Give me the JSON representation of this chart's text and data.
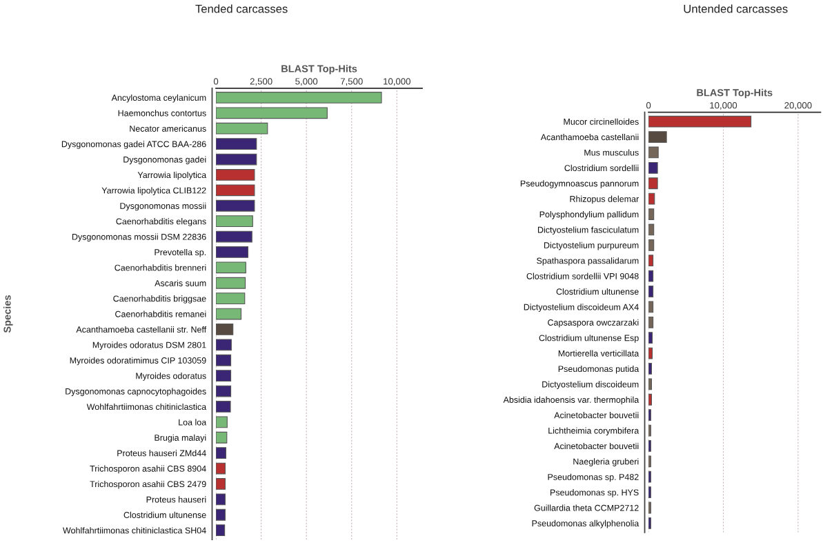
{
  "chart_data": [
    {
      "type": "bar",
      "orientation": "horizontal",
      "title": "Tended carcasses",
      "xlabel": "BLAST Top-Hits",
      "ylabel": "Species",
      "grid": "x",
      "categories": [
        "Ancylostoma ceylanicum",
        "Haemonchus contortus",
        "Necator americanus",
        "Dysgonomonas gadei ATCC BAA-286",
        "Dysgonomonas gadei",
        "Yarrowia lipolytica",
        "Yarrowia lipolytica CLIB122",
        "Dysgonomonas mossii",
        "Caenorhabditis elegans",
        "Dysgonomonas mossii DSM 22836",
        "Prevotella sp.",
        "Caenorhabditis brenneri",
        "Ascaris suum",
        "Caenorhabditis briggsae",
        "Caenorhabditis remanei",
        "Acanthamoeba castellanii str. Neff",
        "Myroides odoratus DSM 2801",
        "Myroides odoratimimus CIP 103059",
        "Myroides odoratus",
        "Dysgonomonas capnocytophagoides",
        "Wohlfahrtiimonas chitiniclastica",
        "Loa loa",
        "Brugia malayi",
        "Proteus hauseri ZMd44",
        "Trichosporon asahii CBS 8904",
        "Trichosporon asahii CBS 2479",
        "Proteus hauseri",
        "Clostridium ultunense",
        "Wohlfahrtiimonas chitiniclastica SH04"
      ],
      "values": [
        9150,
        6150,
        2850,
        2240,
        2240,
        2130,
        2130,
        2130,
        2030,
        1990,
        1770,
        1650,
        1620,
        1590,
        1390,
        940,
        850,
        820,
        820,
        820,
        800,
        620,
        600,
        550,
        510,
        510,
        510,
        510,
        480
      ],
      "colors": [
        "#77b877",
        "#77b877",
        "#77b877",
        "#3a2675",
        "#3a2675",
        "#b83030",
        "#b83030",
        "#3a2675",
        "#77b877",
        "#3a2675",
        "#3a2675",
        "#77b877",
        "#77b877",
        "#77b877",
        "#77b877",
        "#574a40",
        "#3a2675",
        "#3a2675",
        "#3a2675",
        "#3a2675",
        "#3a2675",
        "#77b877",
        "#77b877",
        "#3a2675",
        "#b83030",
        "#b83030",
        "#3a2675",
        "#3a2675",
        "#3a2675"
      ],
      "xlim": [
        0,
        11400
      ],
      "xticks": [
        0,
        {
          "value": 2500,
          "label": "2,500"
        },
        {
          "value": 5000,
          "label": "5,000"
        },
        {
          "value": 7500,
          "label": "7,500"
        },
        {
          "value": 10000,
          "label": "10,000"
        }
      ]
    },
    {
      "type": "bar",
      "orientation": "horizontal",
      "title": "Untended carcasses",
      "xlabel": "BLAST Top-Hits",
      "grid": "x",
      "categories": [
        "Mucor circinelloides",
        "Acanthamoeba castellanii",
        "Mus musculus",
        "Clostridium sordellii",
        "Pseudogymnoascus pannorum",
        "Rhizopus delemar",
        "Polysphondylium pallidum",
        "Dictyostelium fasciculatum",
        "Dictyostelium purpureum",
        "Spathaspora passalidarum",
        "Clostridium sordellii VPI 9048",
        "Clostridium ultunense",
        "Dictyostelium discoideum AX4",
        "Capsaspora owczarzaki",
        "Clostridium ultunense Esp",
        "Mortierella verticillata",
        "Pseudomonas putida",
        "Dictyostelium discoideum",
        "Absidia idahoensis var. thermophila",
        "Acinetobacter bouvetii",
        "Lichtheimia corymbifera",
        "Acinetobacter bouvetii",
        "Naegleria gruberi",
        "Pseudomonas sp. P482",
        "Pseudomonas sp. HYS",
        "Guillardia theta CCMP2712",
        "Pseudomonas alkylphenolia"
      ],
      "values": [
        13700,
        2400,
        1300,
        1200,
        1200,
        800,
        700,
        700,
        700,
        600,
        600,
        600,
        600,
        600,
        500,
        500,
        400,
        400,
        400,
        300,
        300,
        300,
        300,
        300,
        300,
        300,
        300
      ],
      "colors": [
        "#b83030",
        "#574a40",
        "#75665a",
        "#3a2675",
        "#b83030",
        "#b83030",
        "#75665a",
        "#75665a",
        "#75665a",
        "#b83030",
        "#3a2675",
        "#3a2675",
        "#75665a",
        "#75665a",
        "#3a2675",
        "#b83030",
        "#3a2675",
        "#75665a",
        "#b83030",
        "#3a2675",
        "#75665a",
        "#3a2675",
        "#75665a",
        "#3a2675",
        "#3a2675",
        "#75665a",
        "#3a2675"
      ],
      "xlim": [
        0,
        23000
      ],
      "xticks": [
        0,
        {
          "value": 10000,
          "label": "10,000"
        },
        {
          "value": 20000,
          "label": "20,000"
        }
      ]
    }
  ]
}
